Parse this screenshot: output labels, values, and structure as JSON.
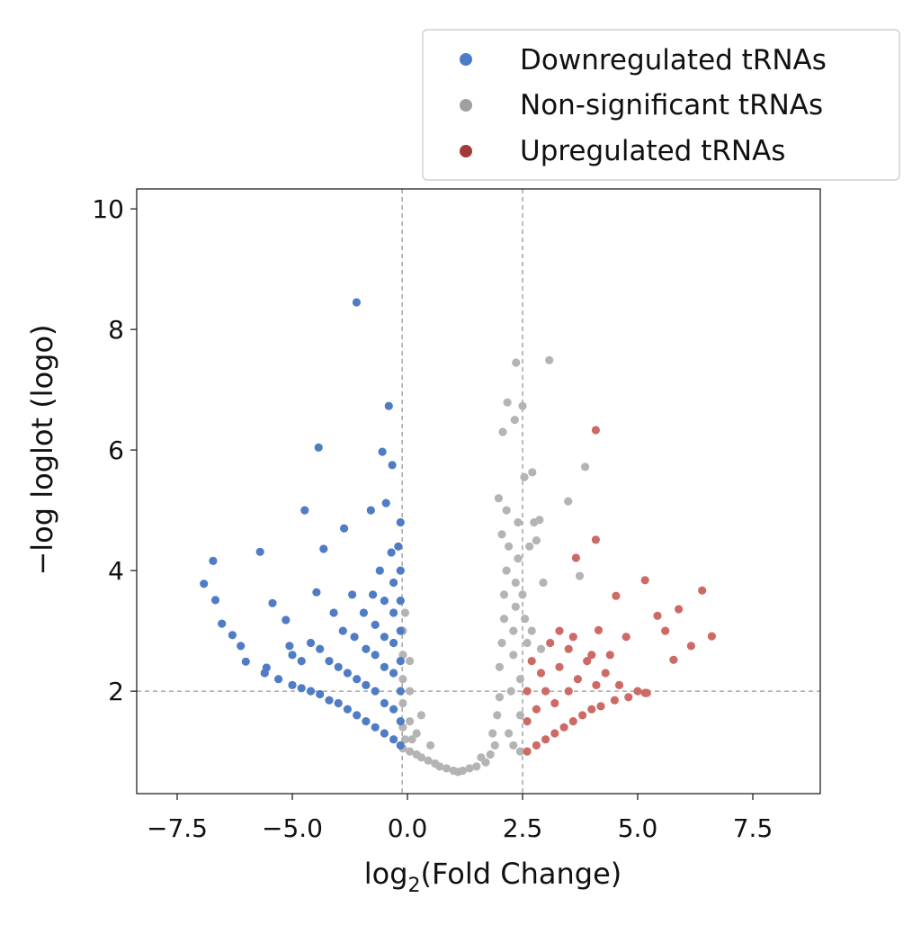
{
  "chart_data": {
    "type": "scatter",
    "title": "",
    "xlabel_main": "log",
    "xlabel_sub": "2",
    "xlabel_rest": "(Fold Change)",
    "ylabel": "−log loglot (logo)",
    "x_ticks": [
      -7.5,
      -5.0,
      0.0,
      2.5,
      5.0,
      7.5
    ],
    "x_tick_labels": [
      "−7.5",
      "−5.0",
      "0.0",
      "2.5",
      "5.0",
      "7.5"
    ],
    "y_ticks": [
      2,
      4,
      6,
      8,
      10
    ],
    "y_tick_labels": [
      "2",
      "4",
      "6",
      "8",
      "10"
    ],
    "xlim": [
      -8.4,
      8.95
    ],
    "ylim": [
      0.3,
      10.33
    ],
    "grid": false,
    "thresholds": {
      "x": [
        -0.23,
        2.5
      ],
      "y": [
        2
      ]
    },
    "legend_position": "top-right, outside above plot",
    "series": [
      {
        "name": "Downregulated tRNAs",
        "color": "#4f7cc4",
        "legend_color": "#4a7cc8",
        "points": [
          [
            -2.21,
            8.45
          ],
          [
            -0.81,
            6.73
          ],
          [
            -3.86,
            6.04
          ],
          [
            -1.09,
            5.97
          ],
          [
            -0.66,
            5.75
          ],
          [
            -4.46,
            5.0
          ],
          [
            -1.59,
            5.0
          ],
          [
            -0.93,
            5.12
          ],
          [
            -2.75,
            4.7
          ],
          [
            -5.7,
            4.31
          ],
          [
            -6.72,
            4.16
          ],
          [
            -6.92,
            3.78
          ],
          [
            -6.67,
            3.51
          ],
          [
            -6.53,
            3.12
          ],
          [
            -5.43,
            3.46
          ],
          [
            -5.14,
            3.18
          ],
          [
            -3.64,
            4.36
          ],
          [
            -3.95,
            3.64
          ],
          [
            -6.3,
            2.93
          ],
          [
            -6.12,
            2.75
          ],
          [
            -6.01,
            2.49
          ],
          [
            -5.56,
            2.39
          ],
          [
            -5.06,
            2.75
          ],
          [
            -0.3,
            1.1
          ],
          [
            -0.3,
            1.5
          ],
          [
            -0.3,
            2.0
          ],
          [
            -0.3,
            2.5
          ],
          [
            -0.3,
            3.0
          ],
          [
            -0.3,
            3.5
          ],
          [
            -0.3,
            4.0
          ],
          [
            -0.4,
            4.4
          ],
          [
            -0.3,
            4.8
          ],
          [
            -0.6,
            1.2
          ],
          [
            -0.6,
            1.7
          ],
          [
            -0.6,
            2.3
          ],
          [
            -0.6,
            2.8
          ],
          [
            -0.6,
            3.3
          ],
          [
            -0.6,
            3.8
          ],
          [
            -0.7,
            4.3
          ],
          [
            -1.0,
            1.3
          ],
          [
            -1.0,
            1.8
          ],
          [
            -1.0,
            2.4
          ],
          [
            -1.0,
            2.9
          ],
          [
            -1.0,
            3.5
          ],
          [
            -1.2,
            4.0
          ],
          [
            -1.4,
            1.4
          ],
          [
            -1.4,
            2.0
          ],
          [
            -1.4,
            2.6
          ],
          [
            -1.4,
            3.1
          ],
          [
            -1.5,
            3.6
          ],
          [
            -1.8,
            1.5
          ],
          [
            -1.8,
            2.1
          ],
          [
            -1.8,
            2.7
          ],
          [
            -1.9,
            3.3
          ],
          [
            -2.2,
            1.6
          ],
          [
            -2.2,
            2.2
          ],
          [
            -2.3,
            2.9
          ],
          [
            -2.4,
            3.6
          ],
          [
            -2.6,
            1.7
          ],
          [
            -2.6,
            2.3
          ],
          [
            -2.8,
            3.0
          ],
          [
            -3.0,
            1.8
          ],
          [
            -3.0,
            2.4
          ],
          [
            -3.2,
            3.3
          ],
          [
            -3.4,
            1.85
          ],
          [
            -3.4,
            2.5
          ],
          [
            -3.8,
            1.95
          ],
          [
            -3.8,
            2.7
          ],
          [
            -4.2,
            2.0
          ],
          [
            -4.2,
            2.8
          ],
          [
            -4.6,
            2.05
          ],
          [
            -4.6,
            2.5
          ],
          [
            -5.0,
            2.1
          ],
          [
            -5.0,
            2.6
          ],
          [
            -5.3,
            2.2
          ],
          [
            -5.6,
            2.3
          ]
        ]
      },
      {
        "name": "Non-significant tRNAs",
        "color": "#b4b4b4",
        "legend_color": "#a0a0a0",
        "points": [
          [
            3.08,
            7.49
          ],
          [
            2.36,
            7.45
          ],
          [
            2.17,
            6.79
          ],
          [
            2.5,
            6.73
          ],
          [
            3.49,
            5.15
          ],
          [
            3.86,
            5.72
          ],
          [
            2.07,
            6.3
          ],
          [
            2.33,
            6.5
          ],
          [
            2.71,
            5.63
          ],
          [
            2.54,
            5.55
          ],
          [
            2.87,
            4.84
          ],
          [
            3.74,
            3.91
          ],
          [
            -0.2,
            1.05
          ],
          [
            -0.2,
            1.4
          ],
          [
            -0.2,
            1.8
          ],
          [
            -0.2,
            2.2
          ],
          [
            -0.2,
            2.6
          ],
          [
            -0.2,
            3.0
          ],
          [
            -0.1,
            3.3
          ],
          [
            -0.1,
            1.2
          ],
          [
            0.05,
            1.0
          ],
          [
            0.05,
            1.5
          ],
          [
            0.05,
            2.0
          ],
          [
            0.05,
            2.5
          ],
          [
            0.1,
            1.2
          ],
          [
            0.2,
            0.95
          ],
          [
            0.2,
            1.3
          ],
          [
            0.3,
            0.9
          ],
          [
            0.3,
            1.6
          ],
          [
            0.45,
            0.85
          ],
          [
            0.5,
            1.1
          ],
          [
            0.6,
            0.8
          ],
          [
            0.7,
            0.75
          ],
          [
            0.85,
            0.72
          ],
          [
            1.0,
            0.68
          ],
          [
            1.1,
            0.66
          ],
          [
            1.2,
            0.68
          ],
          [
            1.35,
            0.72
          ],
          [
            1.5,
            0.75
          ],
          [
            1.6,
            0.9
          ],
          [
            1.7,
            0.82
          ],
          [
            1.8,
            0.95
          ],
          [
            1.85,
            1.3
          ],
          [
            1.9,
            1.1
          ],
          [
            1.95,
            1.6
          ],
          [
            2.0,
            1.9
          ],
          [
            2.0,
            2.4
          ],
          [
            2.05,
            2.8
          ],
          [
            2.1,
            3.2
          ],
          [
            2.1,
            3.6
          ],
          [
            2.15,
            4.0
          ],
          [
            2.2,
            4.4
          ],
          [
            2.2,
            1.3
          ],
          [
            2.25,
            2.0
          ],
          [
            2.3,
            2.6
          ],
          [
            2.3,
            3.0
          ],
          [
            2.35,
            3.4
          ],
          [
            2.35,
            3.8
          ],
          [
            2.4,
            4.2
          ],
          [
            2.4,
            4.8
          ],
          [
            2.45,
            1.0
          ],
          [
            2.45,
            1.6
          ],
          [
            2.45,
            2.2
          ],
          [
            2.3,
            1.1
          ],
          [
            2.5,
            3.6
          ],
          [
            2.55,
            3.2
          ],
          [
            2.6,
            2.8
          ],
          [
            2.65,
            4.4
          ],
          [
            2.7,
            3.0
          ],
          [
            2.75,
            4.8
          ],
          [
            2.8,
            4.5
          ],
          [
            2.9,
            2.7
          ],
          [
            2.95,
            3.8
          ],
          [
            1.98,
            5.2
          ],
          [
            2.15,
            5.0
          ],
          [
            2.05,
            4.6
          ]
        ]
      },
      {
        "name": "Upregulated tRNAs",
        "color": "#cd6a66",
        "legend_color": "#a33a3a",
        "points": [
          [
            4.09,
            6.33
          ],
          [
            4.09,
            4.51
          ],
          [
            3.66,
            4.21
          ],
          [
            4.53,
            3.58
          ],
          [
            5.16,
            3.84
          ],
          [
            6.4,
            3.67
          ],
          [
            5.89,
            3.36
          ],
          [
            5.43,
            3.25
          ],
          [
            6.61,
            2.91
          ],
          [
            6.16,
            2.75
          ],
          [
            5.6,
            3.0
          ],
          [
            4.75,
            2.9
          ],
          [
            4.15,
            3.01
          ],
          [
            5.78,
            2.52
          ],
          [
            5.16,
            1.97
          ],
          [
            2.6,
            1.0
          ],
          [
            2.6,
            1.5
          ],
          [
            2.6,
            2.0
          ],
          [
            2.7,
            2.5
          ],
          [
            2.8,
            1.1
          ],
          [
            2.8,
            1.7
          ],
          [
            2.9,
            2.3
          ],
          [
            3.0,
            1.2
          ],
          [
            3.0,
            2.0
          ],
          [
            3.1,
            2.8
          ],
          [
            3.2,
            1.3
          ],
          [
            3.2,
            1.8
          ],
          [
            3.3,
            2.4
          ],
          [
            3.4,
            1.4
          ],
          [
            3.5,
            2.0
          ],
          [
            3.5,
            2.7
          ],
          [
            3.6,
            1.5
          ],
          [
            3.7,
            2.2
          ],
          [
            3.8,
            1.6
          ],
          [
            3.9,
            2.5
          ],
          [
            4.0,
            1.7
          ],
          [
            4.1,
            2.1
          ],
          [
            4.2,
            1.75
          ],
          [
            4.3,
            2.3
          ],
          [
            4.5,
            1.85
          ],
          [
            4.6,
            2.1
          ],
          [
            4.8,
            1.9
          ],
          [
            5.0,
            2.0
          ],
          [
            5.2,
            1.97
          ],
          [
            3.3,
            3.0
          ],
          [
            3.6,
            2.9
          ],
          [
            4.0,
            2.6
          ],
          [
            4.4,
            2.6
          ]
        ]
      }
    ]
  }
}
